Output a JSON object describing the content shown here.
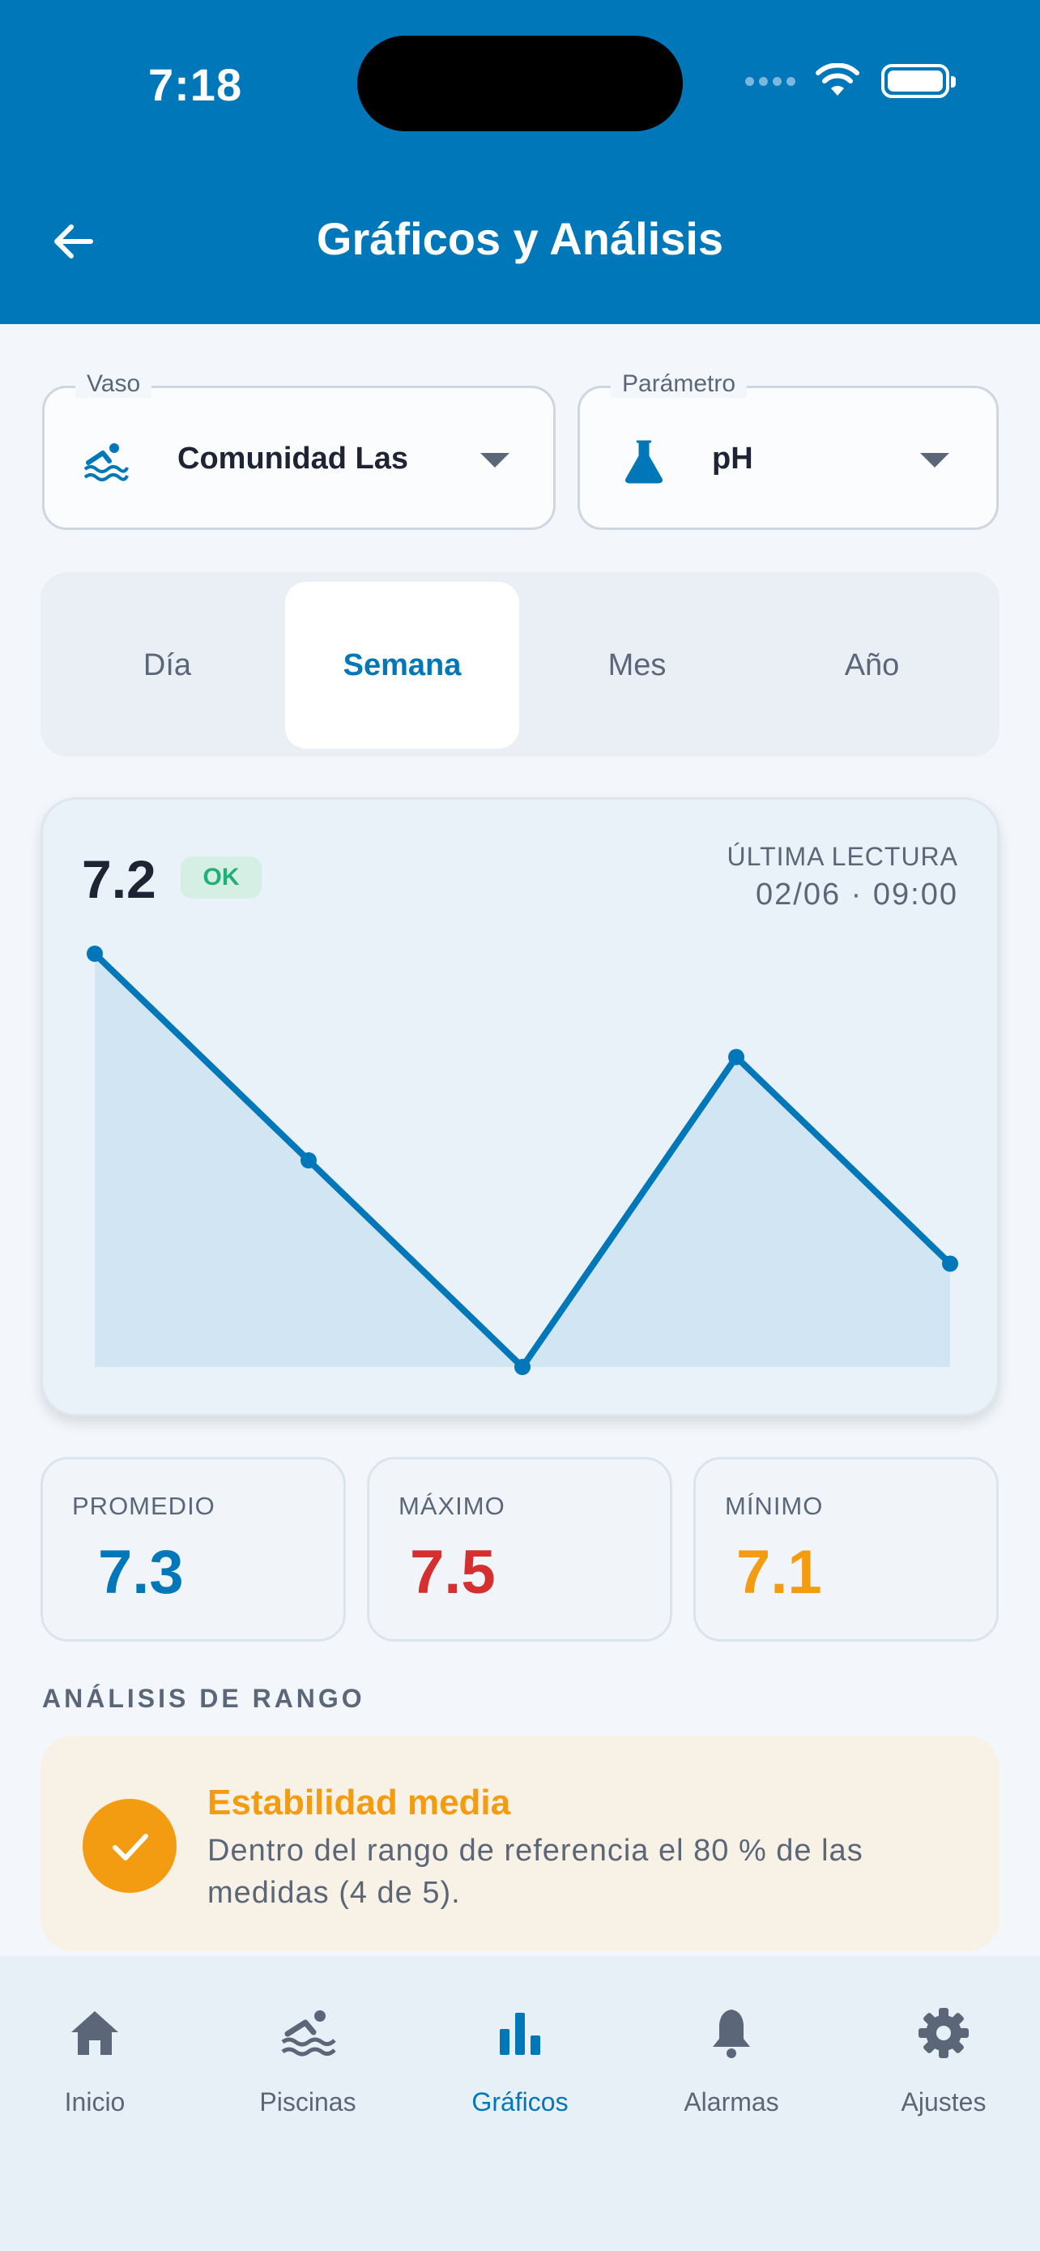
{
  "status_bar": {
    "time": "7:18"
  },
  "header": {
    "title": "Gráficos y Análisis",
    "back_icon": "arrow-left-icon"
  },
  "vaso_select": {
    "legend": "Vaso",
    "value": "Comunidad Las",
    "icon": "swimmer-icon"
  },
  "param_select": {
    "legend": "Parámetro",
    "value": "pH",
    "icon": "flask-icon"
  },
  "period_tabs": [
    "Día",
    "Semana",
    "Mes",
    "Año"
  ],
  "period_selected": "Semana",
  "chart_card": {
    "current_value": "7.2",
    "status_badge": "OK",
    "last_reading_label": "ÚLTIMA LECTURA",
    "last_reading_value": "02/06 · 09:00"
  },
  "chart_data": {
    "type": "area",
    "x": [
      1,
      2,
      3,
      4,
      5
    ],
    "values": [
      7.5,
      7.3,
      7.1,
      7.4,
      7.2
    ],
    "color": "#0077b8",
    "fill": "#d2e5f2",
    "grid": false
  },
  "stats": {
    "average": {
      "label": "PROMEDIO",
      "value": "7.3",
      "color": "#0077b8"
    },
    "max": {
      "label": "MÁXIMO",
      "value": "7.5",
      "color": "#d62f2f"
    },
    "min": {
      "label": "MÍNIMO",
      "value": "7.1",
      "color": "#f39c12"
    }
  },
  "range_analysis": {
    "section_title": "ANÁLISIS DE RANGO",
    "title": "Estabilidad media",
    "text": "Dentro del rango de referencia el 80 % de las medidas (4 de 5).",
    "accent": "#f39c12"
  },
  "bottom_nav": {
    "items": [
      {
        "label": "Inicio",
        "icon": "home-icon"
      },
      {
        "label": "Piscinas",
        "icon": "swimmer-icon"
      },
      {
        "label": "Gráficos",
        "icon": "bar-chart-icon"
      },
      {
        "label": "Alarmas",
        "icon": "bell-icon"
      },
      {
        "label": "Ajustes",
        "icon": "gear-icon"
      }
    ],
    "active": "Gráficos",
    "active_color": "#0077b8"
  }
}
